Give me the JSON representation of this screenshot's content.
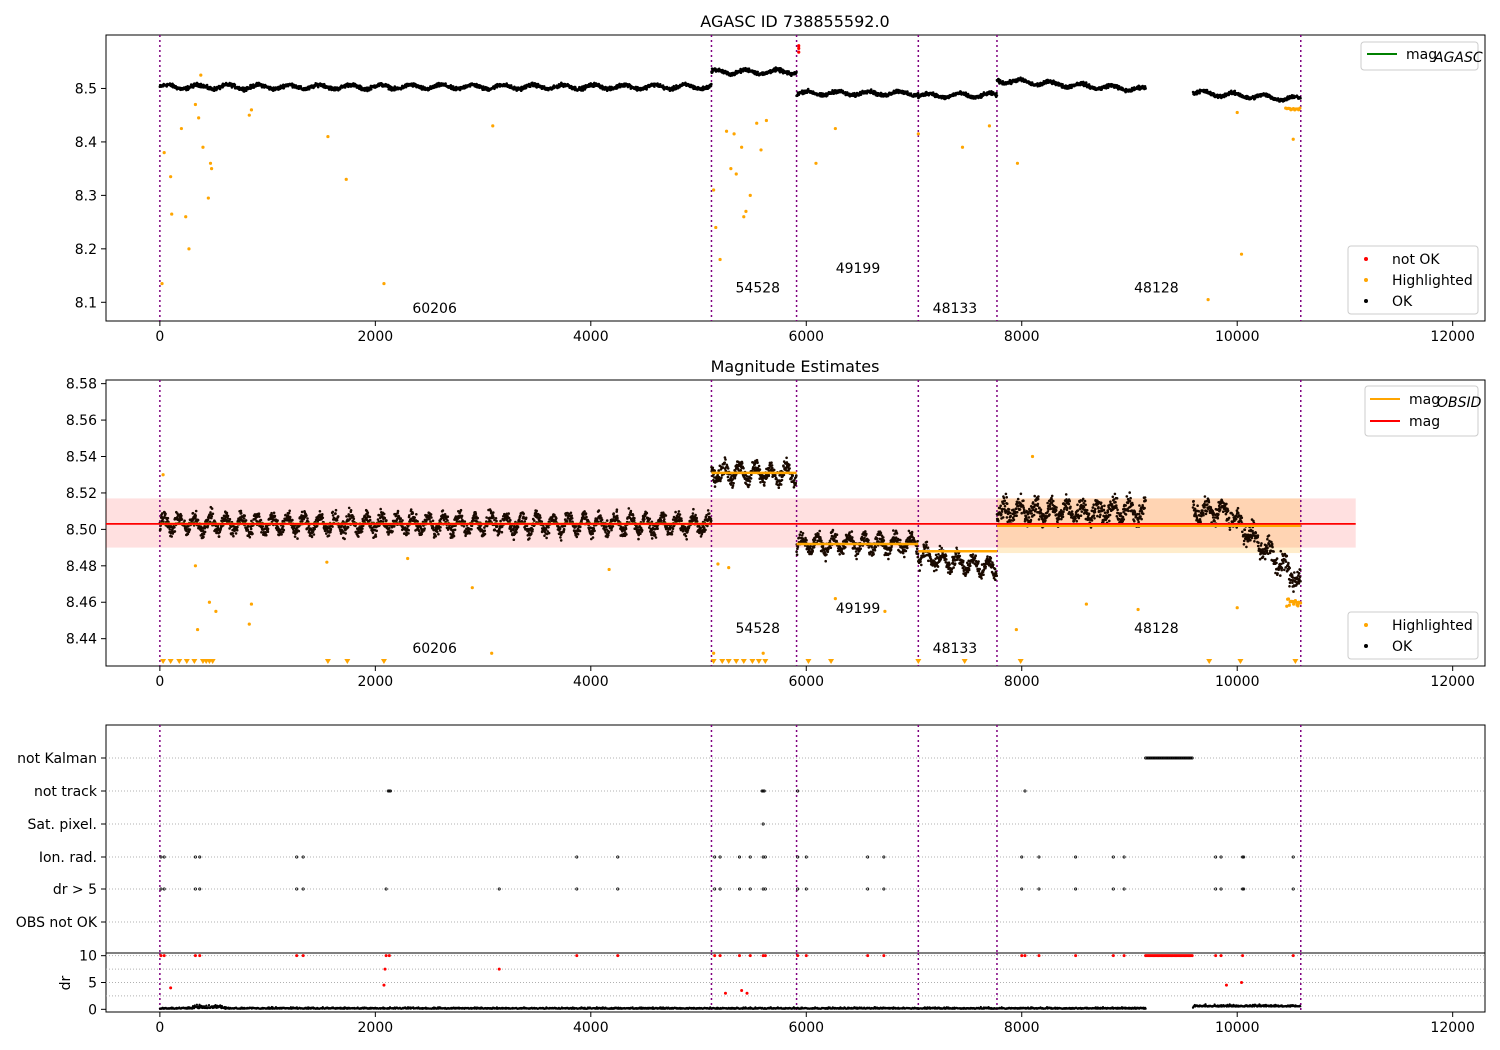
{
  "figure": {
    "panels": [
      {
        "id": "agasc",
        "title": "AGASC ID 738855592.0",
        "xlim": [
          -500,
          12300
        ],
        "ylim": [
          8.065,
          8.6
        ],
        "xticks": [
          0,
          2000,
          4000,
          6000,
          8000,
          10000,
          12000
        ],
        "yticks": [
          8.1,
          8.2,
          8.3,
          8.4,
          8.5
        ],
        "legend_top": [
          {
            "label": "mag",
            "sub": "AGASC",
            "color": "#008000",
            "kind": "line"
          }
        ],
        "legend_bottom": [
          {
            "label": "not OK",
            "color": "#ff0000",
            "kind": "dot"
          },
          {
            "label": "Highlighted",
            "color": "#ffa500",
            "kind": "dot"
          },
          {
            "label": "OK",
            "color": "#000000",
            "kind": "dot"
          }
        ]
      },
      {
        "id": "estimates",
        "title": "Magnitude Estimates",
        "xlim": [
          -500,
          12300
        ],
        "ylim": [
          8.425,
          8.582
        ],
        "xticks": [
          0,
          2000,
          4000,
          6000,
          8000,
          10000,
          12000
        ],
        "yticks": [
          8.44,
          8.46,
          8.48,
          8.5,
          8.52,
          8.54,
          8.56,
          8.58
        ],
        "legend_top": [
          {
            "label": "mag",
            "sub": "OBSID",
            "color": "#ffa500",
            "kind": "line"
          },
          {
            "label": "mag",
            "sub": "",
            "color": "#ff0000",
            "kind": "line"
          }
        ],
        "legend_bottom": [
          {
            "label": "Highlighted",
            "color": "#ffa500",
            "kind": "dot"
          },
          {
            "label": "OK",
            "color": "#000000",
            "kind": "dot"
          }
        ]
      },
      {
        "id": "flags",
        "xlim": [
          -500,
          12300
        ],
        "xticks": [
          0,
          2000,
          4000,
          6000,
          8000,
          10000,
          12000
        ],
        "categories": [
          "not Kalman",
          "not track",
          "Sat. pixel.",
          "Ion. rad.",
          "dr > 5",
          "OBS not OK"
        ]
      },
      {
        "id": "dr",
        "ylabel": "dr",
        "xlim": [
          -500,
          12300
        ],
        "ylim": [
          -0.5,
          10.5
        ],
        "yticks": [
          0,
          5,
          10
        ],
        "xticks": [
          0,
          2000,
          4000,
          6000,
          8000,
          10000,
          12000
        ]
      }
    ]
  },
  "chart_data": {
    "type": "scatter",
    "obsids": [
      {
        "obsid": "60206",
        "start": 0,
        "end": 5120,
        "agasc_mean": 8.503,
        "obsid_mag": 8.503
      },
      {
        "obsid": "54528",
        "start": 5120,
        "end": 5910,
        "agasc_mean": 8.531,
        "obsid_mag": 8.531
      },
      {
        "obsid": "49199",
        "start": 5910,
        "end": 7040,
        "agasc_mean": 8.491,
        "obsid_mag": 8.492
      },
      {
        "obsid": "48133",
        "start": 7040,
        "end": 7770,
        "agasc_mean": 8.487,
        "obsid_mag": 8.488
      },
      {
        "obsid": "48128",
        "start": 7770,
        "end": 10590,
        "agasc_mean": 8.502,
        "obsid_mag": 8.502
      }
    ],
    "boundaries": [
      0,
      5120,
      5910,
      7040,
      7770,
      10590
    ],
    "mag": 8.503,
    "mag_band": [
      8.49,
      8.517
    ],
    "mag_xrange": [
      -500,
      11100
    ],
    "obsid_48128_band": [
      8.487,
      8.517
    ],
    "agasc_not_ok_points": [
      [
        5930,
        8.58
      ],
      [
        5930,
        8.568
      ],
      [
        5930,
        8.575
      ]
    ],
    "agasc_highlighted_points": [
      [
        20,
        8.135
      ],
      [
        40,
        8.38
      ],
      [
        100,
        8.335
      ],
      [
        110,
        8.265
      ],
      [
        200,
        8.425
      ],
      [
        240,
        8.26
      ],
      [
        270,
        8.2
      ],
      [
        330,
        8.47
      ],
      [
        360,
        8.445
      ],
      [
        380,
        8.525
      ],
      [
        400,
        8.39
      ],
      [
        450,
        8.295
      ],
      [
        470,
        8.36
      ],
      [
        480,
        8.35
      ],
      [
        830,
        8.45
      ],
      [
        850,
        8.46
      ],
      [
        1560,
        8.41
      ],
      [
        1730,
        8.33
      ],
      [
        2080,
        8.135
      ],
      [
        3090,
        8.43
      ],
      [
        5140,
        8.31
      ],
      [
        5160,
        8.24
      ],
      [
        5200,
        8.18
      ],
      [
        5260,
        8.42
      ],
      [
        5300,
        8.35
      ],
      [
        5330,
        8.415
      ],
      [
        5350,
        8.34
      ],
      [
        5400,
        8.39
      ],
      [
        5420,
        8.26
      ],
      [
        5440,
        8.27
      ],
      [
        5480,
        8.3
      ],
      [
        5540,
        8.435
      ],
      [
        5580,
        8.385
      ],
      [
        5630,
        8.44
      ],
      [
        6090,
        8.36
      ],
      [
        6270,
        8.425
      ],
      [
        7040,
        8.415
      ],
      [
        7450,
        8.39
      ],
      [
        7700,
        8.43
      ],
      [
        7960,
        8.36
      ],
      [
        9730,
        8.105
      ],
      [
        10040,
        8.19
      ],
      [
        10000,
        8.455
      ],
      [
        10520,
        8.405
      ]
    ],
    "estimates_highlighted_points": [
      [
        30,
        8.53
      ],
      [
        330,
        8.48
      ],
      [
        350,
        8.445
      ],
      [
        460,
        8.46
      ],
      [
        520,
        8.455
      ],
      [
        830,
        8.448
      ],
      [
        850,
        8.459
      ],
      [
        1550,
        8.482
      ],
      [
        2300,
        8.484
      ],
      [
        2900,
        8.468
      ],
      [
        3080,
        8.432
      ],
      [
        4170,
        8.478
      ],
      [
        5140,
        8.432
      ],
      [
        5180,
        8.481
      ],
      [
        5280,
        8.479
      ],
      [
        5600,
        8.432
      ],
      [
        6270,
        8.462
      ],
      [
        6730,
        8.455
      ],
      [
        7950,
        8.445
      ],
      [
        8100,
        8.54
      ],
      [
        8600,
        8.459
      ],
      [
        9080,
        8.456
      ],
      [
        10000,
        8.457
      ]
    ],
    "estimates_lower_markers": [
      30,
      100,
      180,
      250,
      320,
      400,
      430,
      460,
      490,
      1560,
      1740,
      2080,
      5140,
      5220,
      5280,
      5350,
      5420,
      5500,
      5560,
      5620,
      6020,
      6230,
      7040,
      7470,
      7990,
      9740,
      10030,
      10540
    ],
    "flags": {
      "not Kalman": [
        [
          9150,
          9590
        ]
      ],
      "not track": [
        2120,
        2130,
        2140,
        5590,
        5600,
        5610,
        5920,
        8030
      ],
      "Sat. pixel.": [
        5600
      ],
      "Ion. rad.": [
        10,
        40,
        330,
        370,
        1270,
        1330,
        3870,
        4250,
        5150,
        5200,
        5380,
        5480,
        5600,
        5620,
        5920,
        6000,
        6570,
        6720,
        8000,
        8160,
        8500,
        8850,
        8950,
        9800,
        9850,
        10050,
        10060,
        10520
      ],
      "dr > 5": [
        10,
        40,
        330,
        370,
        1270,
        1330,
        2100,
        3150,
        3870,
        4250,
        5150,
        5200,
        5380,
        5480,
        5600,
        5620,
        5920,
        6000,
        6570,
        6720,
        8000,
        8160,
        8500,
        8850,
        8950,
        9800,
        9850,
        10050,
        10060,
        10520
      ],
      "OBS not OK": []
    },
    "dr_red_points": [
      [
        10,
        10
      ],
      [
        40,
        10
      ],
      [
        100,
        4
      ],
      [
        330,
        10
      ],
      [
        370,
        10
      ],
      [
        1270,
        10
      ],
      [
        1330,
        10
      ],
      [
        2090,
        7.5
      ],
      [
        2080,
        4.5
      ],
      [
        2100,
        10
      ],
      [
        2130,
        10
      ],
      [
        3150,
        7.5
      ],
      [
        3870,
        10
      ],
      [
        4250,
        10
      ],
      [
        5150,
        10
      ],
      [
        5200,
        10
      ],
      [
        5250,
        3
      ],
      [
        5380,
        10
      ],
      [
        5400,
        3.5
      ],
      [
        5450,
        3
      ],
      [
        5480,
        10
      ],
      [
        5600,
        10
      ],
      [
        5620,
        10
      ],
      [
        5920,
        10
      ],
      [
        6000,
        10
      ],
      [
        6570,
        10
      ],
      [
        6720,
        10
      ],
      [
        8000,
        10
      ],
      [
        8030,
        10
      ],
      [
        8160,
        10
      ],
      [
        8500,
        10
      ],
      [
        8850,
        10
      ],
      [
        8950,
        10
      ],
      [
        9800,
        10
      ],
      [
        9850,
        10
      ],
      [
        9900,
        4.5
      ],
      [
        10040,
        5
      ],
      [
        10050,
        10
      ],
      [
        10520,
        10
      ]
    ],
    "obsid_label_positions": {
      "agasc": [
        [
          2550,
          8.08
        ],
        [
          5550,
          8.118
        ],
        [
          6480,
          8.155
        ],
        [
          7380,
          8.08
        ],
        [
          9250,
          8.118
        ]
      ],
      "estimates": [
        [
          2550,
          8.432
        ],
        [
          5550,
          8.443
        ],
        [
          6480,
          8.454
        ],
        [
          7380,
          8.432
        ],
        [
          9250,
          8.443
        ]
      ]
    }
  }
}
